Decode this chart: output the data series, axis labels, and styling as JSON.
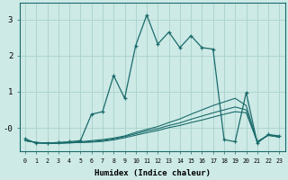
{
  "xlabel": "Humidex (Indice chaleur)",
  "bg_color": "#cdeae6",
  "grid_color": "#aed4cf",
  "line_color": "#1a6b6b",
  "xlim": [
    -0.5,
    23.5
  ],
  "ylim": [
    -0.65,
    3.45
  ],
  "lines": [
    {
      "x": [
        0,
        1,
        2,
        3,
        4,
        5,
        6,
        7,
        8,
        9,
        10,
        11,
        12,
        13,
        14,
        15,
        16,
        17,
        18,
        19,
        20,
        21,
        22,
        23
      ],
      "y": [
        -0.3,
        -0.42,
        -0.42,
        -0.4,
        -0.38,
        -0.35,
        0.38,
        0.45,
        1.45,
        0.82,
        2.28,
        3.12,
        2.32,
        2.65,
        2.22,
        2.55,
        2.22,
        2.18,
        -0.32,
        -0.38,
        0.98,
        -0.42,
        -0.18,
        -0.22
      ],
      "marker": true
    },
    {
      "x": [
        0,
        1,
        2,
        3,
        4,
        5,
        6,
        7,
        8,
        9,
        10,
        11,
        12,
        13,
        14,
        15,
        16,
        17,
        18,
        19,
        20,
        21,
        22,
        23
      ],
      "y": [
        -0.35,
        -0.4,
        -0.42,
        -0.42,
        -0.4,
        -0.38,
        -0.35,
        -0.32,
        -0.28,
        -0.22,
        -0.12,
        -0.04,
        0.04,
        0.15,
        0.25,
        0.38,
        0.5,
        0.62,
        0.72,
        0.82,
        0.62,
        -0.38,
        -0.2,
        -0.25
      ],
      "marker": false
    },
    {
      "x": [
        0,
        1,
        2,
        3,
        4,
        5,
        6,
        7,
        8,
        9,
        10,
        11,
        12,
        13,
        14,
        15,
        16,
        17,
        18,
        19,
        20,
        21,
        22,
        23
      ],
      "y": [
        -0.35,
        -0.4,
        -0.42,
        -0.42,
        -0.41,
        -0.4,
        -0.38,
        -0.35,
        -0.3,
        -0.24,
        -0.16,
        -0.08,
        -0.02,
        0.07,
        0.14,
        0.24,
        0.33,
        0.42,
        0.5,
        0.58,
        0.5,
        -0.38,
        -0.2,
        -0.25
      ],
      "marker": false
    },
    {
      "x": [
        0,
        1,
        2,
        3,
        4,
        5,
        6,
        7,
        8,
        9,
        10,
        11,
        12,
        13,
        14,
        15,
        16,
        17,
        18,
        19,
        20,
        21,
        22,
        23
      ],
      "y": [
        -0.35,
        -0.4,
        -0.42,
        -0.42,
        -0.41,
        -0.4,
        -0.39,
        -0.37,
        -0.33,
        -0.27,
        -0.2,
        -0.13,
        -0.07,
        0.01,
        0.07,
        0.15,
        0.22,
        0.3,
        0.38,
        0.45,
        0.42,
        -0.38,
        -0.2,
        -0.25
      ],
      "marker": false
    }
  ]
}
